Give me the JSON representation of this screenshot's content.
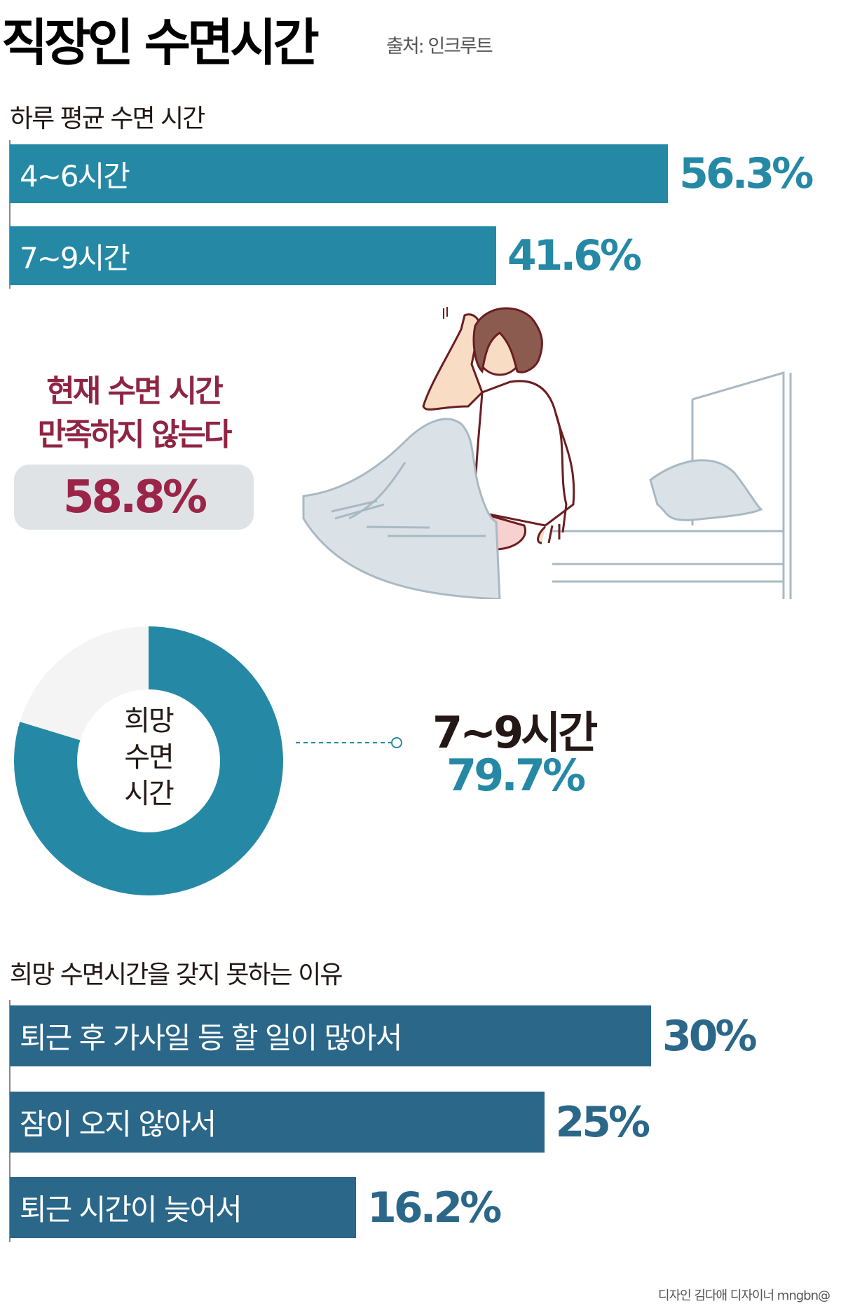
{
  "title": "직장인 수면시간",
  "source": "출처: 인크루트",
  "colors": {
    "teal": "#2589a6",
    "navy": "#2b6789",
    "maroon": "#9b2548",
    "donut_rest": "#f4f4f4"
  },
  "chart_data": [
    {
      "type": "bar",
      "orientation": "horizontal",
      "title": "하루 평균 수면 시간",
      "categories": [
        "4~6시간",
        "7~9시간"
      ],
      "values": [
        56.3,
        41.6
      ],
      "value_labels": [
        "56.3%",
        "41.6%"
      ]
    },
    {
      "type": "pie",
      "style": "donut",
      "center_label": [
        "희망",
        "수면",
        "시간"
      ],
      "slices": [
        {
          "label": "7~9시간",
          "value": 79.7,
          "value_label": "79.7%"
        },
        {
          "label": "",
          "value": 20.3
        }
      ]
    },
    {
      "type": "bar",
      "orientation": "horizontal",
      "title": "희망 수면시간을 갖지 못하는 이유",
      "categories": [
        "퇴근 후 가사일 등 할 일이 많아서",
        "잠이 오지 않아서",
        "퇴근 시간이 늦어서"
      ],
      "values": [
        30,
        25,
        16.2
      ],
      "value_labels": [
        "30%",
        "25%",
        "16.2%"
      ]
    }
  ],
  "satisfaction": {
    "line1": "현재 수면 시간",
    "line2": "만족하지 않는다",
    "value": "58.8%"
  },
  "footer": "디자인 김다애 디자이너 mngbn@"
}
